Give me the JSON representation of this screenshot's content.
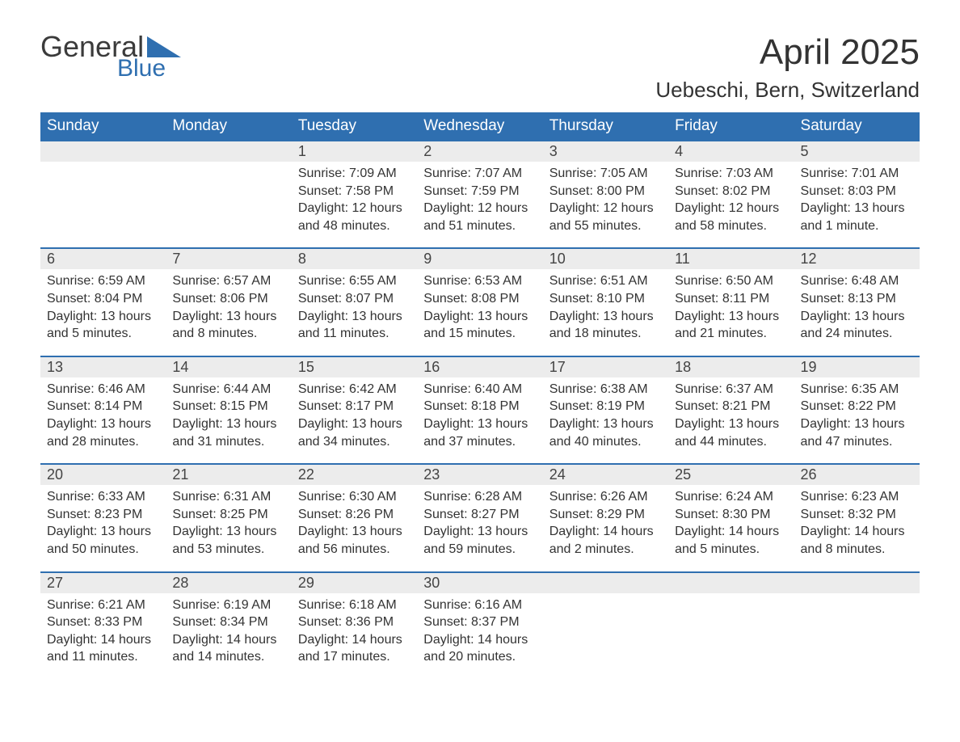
{
  "logo": {
    "word1": "General",
    "word2": "Blue",
    "accent_color": "#2f6fb0",
    "text_color": "#3b3b3b"
  },
  "title": "April 2025",
  "location": "Uebeschi, Bern, Switzerland",
  "colors": {
    "header_bg": "#2f6fb0",
    "header_text": "#ffffff",
    "daynum_bg": "#ececec",
    "border": "#2f6fb0",
    "body_text": "#333333",
    "page_bg": "#ffffff"
  },
  "typography": {
    "month_title_size": 44,
    "location_size": 26,
    "weekday_size": 19,
    "daynum_size": 18,
    "body_size": 16,
    "font_family": "Arial"
  },
  "weekdays": [
    "Sunday",
    "Monday",
    "Tuesday",
    "Wednesday",
    "Thursday",
    "Friday",
    "Saturday"
  ],
  "weeks": [
    [
      null,
      null,
      {
        "n": "1",
        "sunrise": "Sunrise: 7:09 AM",
        "sunset": "Sunset: 7:58 PM",
        "day1": "Daylight: 12 hours",
        "day2": "and 48 minutes."
      },
      {
        "n": "2",
        "sunrise": "Sunrise: 7:07 AM",
        "sunset": "Sunset: 7:59 PM",
        "day1": "Daylight: 12 hours",
        "day2": "and 51 minutes."
      },
      {
        "n": "3",
        "sunrise": "Sunrise: 7:05 AM",
        "sunset": "Sunset: 8:00 PM",
        "day1": "Daylight: 12 hours",
        "day2": "and 55 minutes."
      },
      {
        "n": "4",
        "sunrise": "Sunrise: 7:03 AM",
        "sunset": "Sunset: 8:02 PM",
        "day1": "Daylight: 12 hours",
        "day2": "and 58 minutes."
      },
      {
        "n": "5",
        "sunrise": "Sunrise: 7:01 AM",
        "sunset": "Sunset: 8:03 PM",
        "day1": "Daylight: 13 hours",
        "day2": "and 1 minute."
      }
    ],
    [
      {
        "n": "6",
        "sunrise": "Sunrise: 6:59 AM",
        "sunset": "Sunset: 8:04 PM",
        "day1": "Daylight: 13 hours",
        "day2": "and 5 minutes."
      },
      {
        "n": "7",
        "sunrise": "Sunrise: 6:57 AM",
        "sunset": "Sunset: 8:06 PM",
        "day1": "Daylight: 13 hours",
        "day2": "and 8 minutes."
      },
      {
        "n": "8",
        "sunrise": "Sunrise: 6:55 AM",
        "sunset": "Sunset: 8:07 PM",
        "day1": "Daylight: 13 hours",
        "day2": "and 11 minutes."
      },
      {
        "n": "9",
        "sunrise": "Sunrise: 6:53 AM",
        "sunset": "Sunset: 8:08 PM",
        "day1": "Daylight: 13 hours",
        "day2": "and 15 minutes."
      },
      {
        "n": "10",
        "sunrise": "Sunrise: 6:51 AM",
        "sunset": "Sunset: 8:10 PM",
        "day1": "Daylight: 13 hours",
        "day2": "and 18 minutes."
      },
      {
        "n": "11",
        "sunrise": "Sunrise: 6:50 AM",
        "sunset": "Sunset: 8:11 PM",
        "day1": "Daylight: 13 hours",
        "day2": "and 21 minutes."
      },
      {
        "n": "12",
        "sunrise": "Sunrise: 6:48 AM",
        "sunset": "Sunset: 8:13 PM",
        "day1": "Daylight: 13 hours",
        "day2": "and 24 minutes."
      }
    ],
    [
      {
        "n": "13",
        "sunrise": "Sunrise: 6:46 AM",
        "sunset": "Sunset: 8:14 PM",
        "day1": "Daylight: 13 hours",
        "day2": "and 28 minutes."
      },
      {
        "n": "14",
        "sunrise": "Sunrise: 6:44 AM",
        "sunset": "Sunset: 8:15 PM",
        "day1": "Daylight: 13 hours",
        "day2": "and 31 minutes."
      },
      {
        "n": "15",
        "sunrise": "Sunrise: 6:42 AM",
        "sunset": "Sunset: 8:17 PM",
        "day1": "Daylight: 13 hours",
        "day2": "and 34 minutes."
      },
      {
        "n": "16",
        "sunrise": "Sunrise: 6:40 AM",
        "sunset": "Sunset: 8:18 PM",
        "day1": "Daylight: 13 hours",
        "day2": "and 37 minutes."
      },
      {
        "n": "17",
        "sunrise": "Sunrise: 6:38 AM",
        "sunset": "Sunset: 8:19 PM",
        "day1": "Daylight: 13 hours",
        "day2": "and 40 minutes."
      },
      {
        "n": "18",
        "sunrise": "Sunrise: 6:37 AM",
        "sunset": "Sunset: 8:21 PM",
        "day1": "Daylight: 13 hours",
        "day2": "and 44 minutes."
      },
      {
        "n": "19",
        "sunrise": "Sunrise: 6:35 AM",
        "sunset": "Sunset: 8:22 PM",
        "day1": "Daylight: 13 hours",
        "day2": "and 47 minutes."
      }
    ],
    [
      {
        "n": "20",
        "sunrise": "Sunrise: 6:33 AM",
        "sunset": "Sunset: 8:23 PM",
        "day1": "Daylight: 13 hours",
        "day2": "and 50 minutes."
      },
      {
        "n": "21",
        "sunrise": "Sunrise: 6:31 AM",
        "sunset": "Sunset: 8:25 PM",
        "day1": "Daylight: 13 hours",
        "day2": "and 53 minutes."
      },
      {
        "n": "22",
        "sunrise": "Sunrise: 6:30 AM",
        "sunset": "Sunset: 8:26 PM",
        "day1": "Daylight: 13 hours",
        "day2": "and 56 minutes."
      },
      {
        "n": "23",
        "sunrise": "Sunrise: 6:28 AM",
        "sunset": "Sunset: 8:27 PM",
        "day1": "Daylight: 13 hours",
        "day2": "and 59 minutes."
      },
      {
        "n": "24",
        "sunrise": "Sunrise: 6:26 AM",
        "sunset": "Sunset: 8:29 PM",
        "day1": "Daylight: 14 hours",
        "day2": "and 2 minutes."
      },
      {
        "n": "25",
        "sunrise": "Sunrise: 6:24 AM",
        "sunset": "Sunset: 8:30 PM",
        "day1": "Daylight: 14 hours",
        "day2": "and 5 minutes."
      },
      {
        "n": "26",
        "sunrise": "Sunrise: 6:23 AM",
        "sunset": "Sunset: 8:32 PM",
        "day1": "Daylight: 14 hours",
        "day2": "and 8 minutes."
      }
    ],
    [
      {
        "n": "27",
        "sunrise": "Sunrise: 6:21 AM",
        "sunset": "Sunset: 8:33 PM",
        "day1": "Daylight: 14 hours",
        "day2": "and 11 minutes."
      },
      {
        "n": "28",
        "sunrise": "Sunrise: 6:19 AM",
        "sunset": "Sunset: 8:34 PM",
        "day1": "Daylight: 14 hours",
        "day2": "and 14 minutes."
      },
      {
        "n": "29",
        "sunrise": "Sunrise: 6:18 AM",
        "sunset": "Sunset: 8:36 PM",
        "day1": "Daylight: 14 hours",
        "day2": "and 17 minutes."
      },
      {
        "n": "30",
        "sunrise": "Sunrise: 6:16 AM",
        "sunset": "Sunset: 8:37 PM",
        "day1": "Daylight: 14 hours",
        "day2": "and 20 minutes."
      },
      null,
      null,
      null
    ]
  ]
}
